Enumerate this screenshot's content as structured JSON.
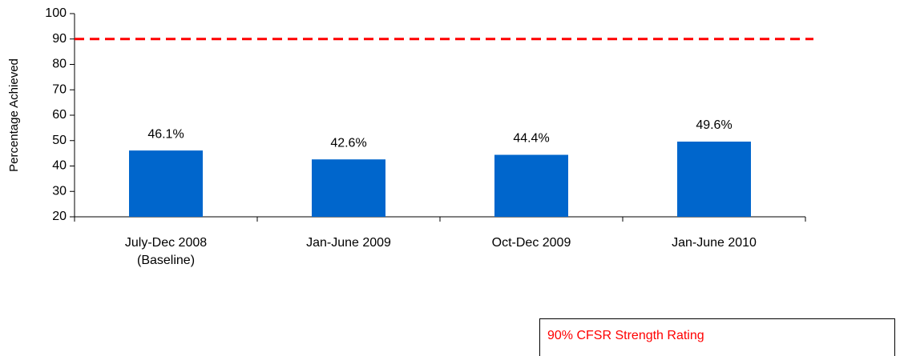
{
  "chart_data": {
    "type": "bar",
    "y_label": "Percentage Achieved",
    "categories": [
      "July-Dec 2008\n(Baseline)",
      "Jan-June 2009",
      "Oct-Dec 2009",
      "Jan-June 2010"
    ],
    "values": [
      46.1,
      42.6,
      44.4,
      49.6
    ],
    "value_labels": [
      "46.1%",
      "42.6%",
      "44.4%",
      "49.6%"
    ],
    "color": "#0066cc",
    "ylim": [
      20,
      100
    ],
    "yticks": [
      20,
      30,
      40,
      50,
      60,
      70,
      80,
      90,
      100
    ],
    "reference_line": {
      "value": 90,
      "color": "#ff0000",
      "label": "90% CFSR Strength Rating"
    }
  }
}
